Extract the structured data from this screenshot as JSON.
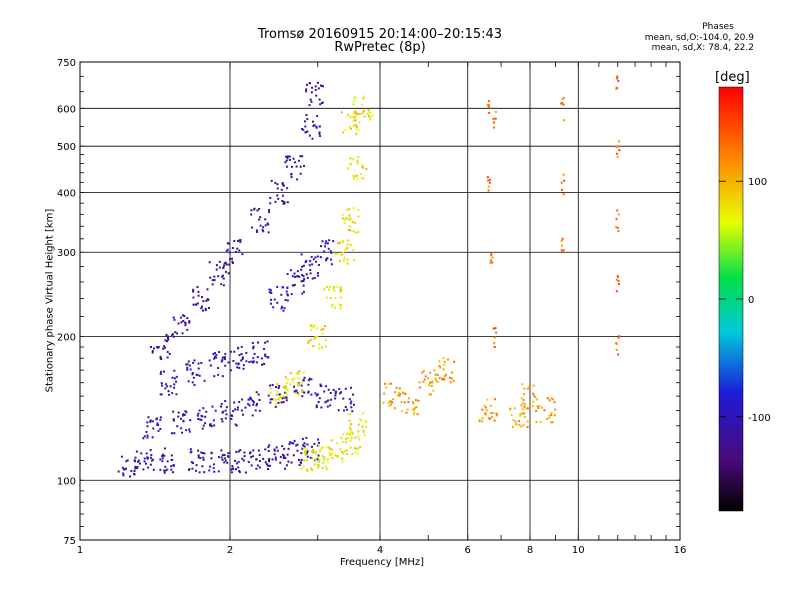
{
  "header": {
    "title_line1": "Tromsø 20160915 20:14:00–20:15:43",
    "title_line2": "RwPretec (8p)"
  },
  "phases": {
    "heading": "Phases",
    "line1": "mean, sd,O:-104.0, 20.9",
    "line2": "mean, sd,X:  78.4, 22.2"
  },
  "chart_data": {
    "type": "scatter",
    "xlabel": "Frequency [MHz]",
    "ylabel": "Stationary phase Virtual Height [km]",
    "x_scale": "log",
    "y_scale": "log",
    "xlim": [
      1,
      16
    ],
    "ylim": [
      75,
      750
    ],
    "x_ticks": [
      1,
      2,
      4,
      6,
      8,
      10,
      16
    ],
    "y_ticks": [
      75,
      100,
      200,
      300,
      400,
      500,
      600,
      750
    ],
    "grid_x": [
      2,
      4,
      6,
      8,
      10
    ],
    "grid_y": [
      100,
      200,
      300,
      400,
      500,
      600
    ],
    "colorbar": {
      "label": "[deg]",
      "range": [
        -180,
        180
      ],
      "ticks": [
        -100,
        0,
        100
      ]
    },
    "clusters": [
      {
        "desc": "O-mode trace",
        "phase": -110,
        "points": [
          [
            1.25,
            107
          ],
          [
            1.35,
            109
          ],
          [
            1.5,
            110
          ],
          [
            1.7,
            110
          ],
          [
            1.9,
            110
          ],
          [
            2.1,
            110
          ],
          [
            2.3,
            111
          ],
          [
            2.5,
            112
          ],
          [
            2.7,
            114
          ],
          [
            2.9,
            116
          ]
        ]
      },
      {
        "desc": "O-mode lower band",
        "phase": -105,
        "points": [
          [
            1.4,
            130
          ],
          [
            1.6,
            133
          ],
          [
            1.8,
            135
          ],
          [
            2.0,
            138
          ],
          [
            2.2,
            145
          ],
          [
            2.5,
            150
          ],
          [
            2.8,
            155
          ],
          [
            3.1,
            150
          ],
          [
            3.4,
            148
          ]
        ]
      },
      {
        "desc": "O-mode mid band",
        "phase": -100,
        "points": [
          [
            1.5,
            160
          ],
          [
            1.7,
            168
          ],
          [
            1.9,
            175
          ],
          [
            2.1,
            180
          ],
          [
            2.3,
            185
          ],
          [
            2.5,
            240
          ],
          [
            2.7,
            260
          ],
          [
            2.9,
            280
          ],
          [
            3.1,
            300
          ]
        ]
      },
      {
        "desc": "O-mode upper band",
        "phase": -115,
        "points": [
          [
            1.45,
            190
          ],
          [
            1.6,
            210
          ],
          [
            1.75,
            240
          ],
          [
            1.9,
            270
          ],
          [
            2.05,
            300
          ],
          [
            2.3,
            350
          ],
          [
            2.5,
            400
          ],
          [
            2.7,
            450
          ],
          [
            2.9,
            550
          ],
          [
            2.95,
            640
          ]
        ]
      },
      {
        "desc": "X-mode band",
        "phase": 80,
        "points": [
          [
            2.5,
            150
          ],
          [
            2.7,
            160
          ],
          [
            3.0,
            200
          ],
          [
            3.2,
            240
          ],
          [
            3.4,
            300
          ],
          [
            3.5,
            350
          ],
          [
            3.6,
            450
          ],
          [
            3.5,
            560
          ],
          [
            3.7,
            600
          ]
        ]
      },
      {
        "desc": "X-mode lower",
        "phase": 70,
        "points": [
          [
            2.9,
            110
          ],
          [
            3.1,
            112
          ],
          [
            3.3,
            115
          ],
          [
            3.5,
            120
          ],
          [
            3.6,
            130
          ]
        ]
      },
      {
        "desc": "Higher-frequency echoes",
        "phase": 110,
        "points": [
          [
            4.2,
            150
          ],
          [
            4.6,
            145
          ],
          [
            5.0,
            160
          ],
          [
            5.4,
            170
          ],
          [
            6.6,
            140
          ],
          [
            7.6,
            135
          ],
          [
            8.0,
            150
          ],
          [
            8.6,
            140
          ]
        ]
      },
      {
        "desc": "Vertical streaks",
        "phase": 130,
        "points": [
          [
            6.6,
            600
          ],
          [
            6.8,
            560
          ],
          [
            6.6,
            420
          ],
          [
            6.7,
            300
          ],
          [
            6.8,
            200
          ],
          [
            9.3,
            600
          ],
          [
            9.3,
            420
          ],
          [
            9.3,
            320
          ],
          [
            12.0,
            680
          ],
          [
            12.0,
            500
          ],
          [
            12.0,
            350
          ],
          [
            12.0,
            260
          ],
          [
            12.0,
            190
          ]
        ]
      }
    ]
  }
}
